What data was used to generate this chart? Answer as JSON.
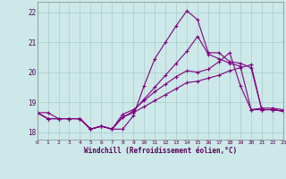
{
  "xlabel": "Windchill (Refroidissement éolien,°C)",
  "background_color": "#cce8e8",
  "line_color": "#800080",
  "grid_color": "#aacccc",
  "xmin": 0,
  "xmax": 23,
  "ymin": 17.75,
  "ymax": 22.35,
  "yticks": [
    18,
    19,
    20,
    21,
    22
  ],
  "xticks": [
    0,
    1,
    2,
    3,
    4,
    5,
    6,
    7,
    8,
    9,
    10,
    11,
    12,
    13,
    14,
    15,
    16,
    17,
    18,
    19,
    20,
    21,
    22,
    23
  ],
  "lines": [
    {
      "x": [
        0,
        1,
        2,
        3,
        4,
        5,
        6,
        7,
        8,
        9,
        10,
        11,
        12,
        13,
        14,
        15,
        16,
        17,
        18,
        19,
        20,
        21,
        22,
        23
      ],
      "y": [
        18.65,
        18.65,
        18.45,
        18.45,
        18.45,
        18.1,
        18.2,
        18.1,
        18.1,
        18.55,
        19.55,
        20.45,
        21.0,
        21.55,
        22.05,
        21.75,
        20.65,
        20.65,
        20.35,
        20.3,
        20.15,
        18.75,
        18.75,
        18.7
      ]
    },
    {
      "x": [
        0,
        1,
        2,
        3,
        4,
        5,
        6,
        7,
        8,
        9,
        10,
        11,
        12,
        13,
        14,
        15,
        16,
        17,
        18,
        19,
        20,
        21,
        22,
        23
      ],
      "y": [
        18.65,
        18.45,
        18.45,
        18.45,
        18.45,
        18.1,
        18.2,
        18.1,
        18.5,
        18.7,
        19.1,
        19.5,
        19.9,
        20.3,
        20.7,
        21.2,
        20.6,
        20.45,
        20.3,
        20.2,
        18.75,
        18.75,
        18.75,
        18.7
      ]
    },
    {
      "x": [
        0,
        1,
        2,
        3,
        4,
        5,
        6,
        7,
        8,
        9,
        10,
        11,
        12,
        13,
        14,
        15,
        16,
        17,
        18,
        19,
        20,
        21,
        22,
        23
      ],
      "y": [
        18.65,
        18.45,
        18.45,
        18.45,
        18.45,
        18.1,
        18.2,
        18.1,
        18.6,
        18.75,
        19.05,
        19.35,
        19.6,
        19.85,
        20.05,
        20.0,
        20.1,
        20.35,
        20.65,
        19.55,
        18.75,
        18.8,
        18.8,
        18.75
      ]
    },
    {
      "x": [
        0,
        1,
        2,
        3,
        4,
        5,
        6,
        7,
        8,
        9,
        10,
        11,
        12,
        13,
        14,
        15,
        16,
        17,
        18,
        19,
        20,
        21,
        22,
        23
      ],
      "y": [
        18.65,
        18.45,
        18.45,
        18.45,
        18.45,
        18.1,
        18.2,
        18.1,
        18.5,
        18.65,
        18.85,
        19.05,
        19.25,
        19.45,
        19.65,
        19.7,
        19.8,
        19.9,
        20.05,
        20.15,
        20.25,
        18.75,
        18.75,
        18.7
      ]
    }
  ]
}
